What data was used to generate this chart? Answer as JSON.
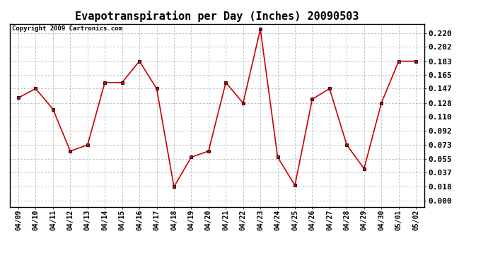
{
  "title": "Evapotranspiration per Day (Inches) 20090503",
  "copyright": "Copyright 2009 Cartronics.com",
  "dates": [
    "04/09",
    "04/10",
    "04/11",
    "04/12",
    "04/13",
    "04/14",
    "04/15",
    "04/16",
    "04/17",
    "04/18",
    "04/19",
    "04/20",
    "04/21",
    "04/22",
    "04/23",
    "04/24",
    "04/25",
    "04/26",
    "04/27",
    "04/28",
    "04/29",
    "04/30",
    "05/01",
    "05/02"
  ],
  "values": [
    0.135,
    0.147,
    0.12,
    0.065,
    0.073,
    0.155,
    0.155,
    0.183,
    0.147,
    0.018,
    0.057,
    0.065,
    0.155,
    0.128,
    0.225,
    0.057,
    0.02,
    0.133,
    0.147,
    0.073,
    0.042,
    0.128,
    0.183,
    0.183
  ],
  "line_color": "#cc0000",
  "marker": "s",
  "marker_size": 3,
  "marker_color": "#000000",
  "background_color": "#ffffff",
  "grid_color": "#aaaaaa",
  "yticks": [
    0.0,
    0.018,
    0.037,
    0.055,
    0.073,
    0.092,
    0.11,
    0.128,
    0.147,
    0.165,
    0.183,
    0.202,
    0.22
  ],
  "ylim": [
    -0.008,
    0.232
  ],
  "title_fontsize": 11,
  "copyright_fontsize": 6.5,
  "tick_fontsize": 7,
  "ytick_fontsize": 8
}
